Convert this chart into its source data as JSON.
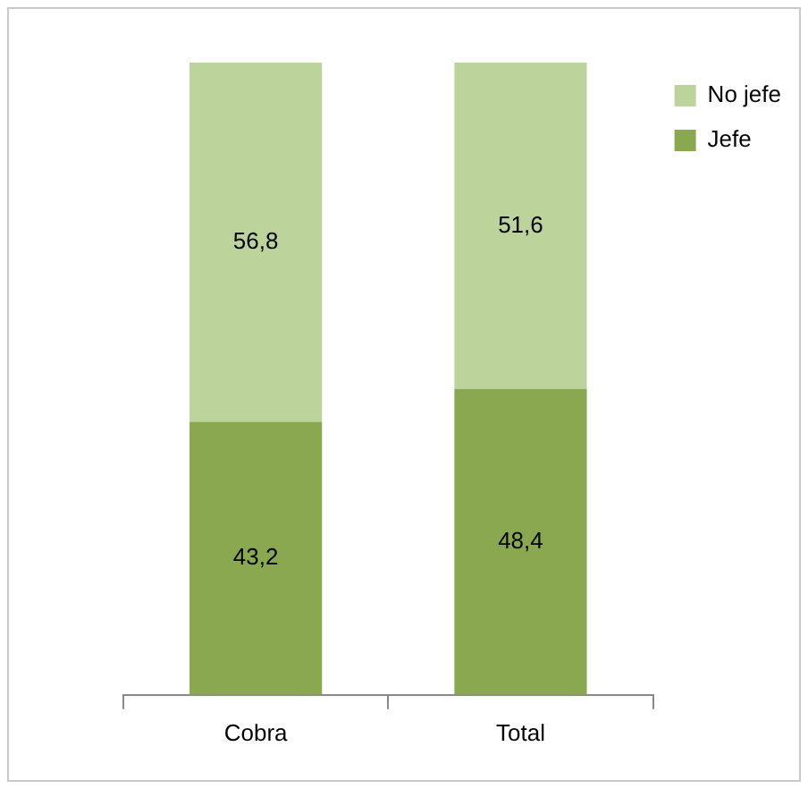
{
  "chart_data": {
    "type": "bar",
    "stacked": true,
    "categories": [
      "Cobra",
      "Total"
    ],
    "series": [
      {
        "name": "Jefe",
        "color": "#8aa84f",
        "values": [
          43.2,
          48.4
        ],
        "value_labels": [
          "43,2",
          "48,4"
        ]
      },
      {
        "name": "No jefe",
        "color": "#bcd39b",
        "values": [
          56.8,
          51.6
        ],
        "value_labels": [
          "56,8",
          "51,6"
        ]
      }
    ],
    "legend": "top right",
    "grid": false,
    "tick_labels": "x"
  }
}
